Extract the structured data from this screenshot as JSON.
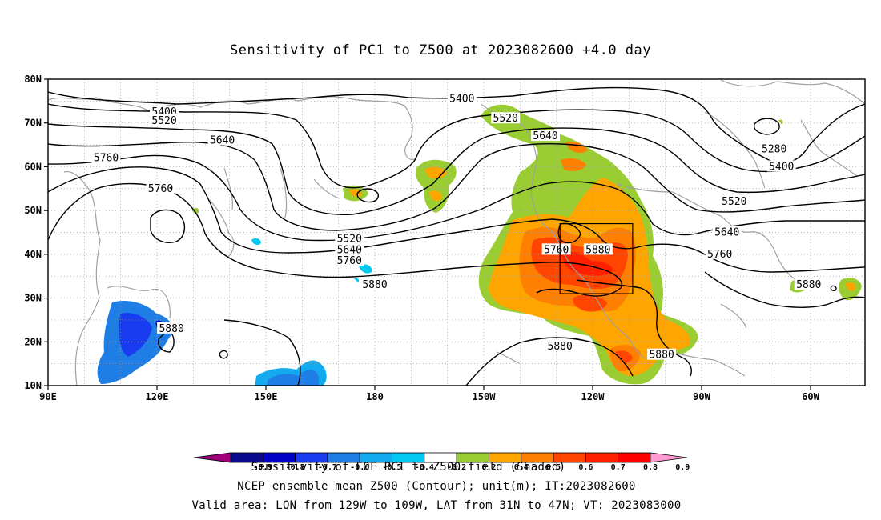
{
  "title": "Sensitivity of PC1 to Z500 at 2023082600 +4.0 day",
  "axes": {
    "lon_ticks": [
      "90E",
      "120E",
      "150E",
      "180",
      "150W",
      "120W",
      "90W",
      "60W"
    ],
    "lat_ticks": [
      "80N",
      "70N",
      "60N",
      "50N",
      "40N",
      "30N",
      "20N",
      "10N"
    ],
    "lon_range_deg": [
      90,
      315
    ],
    "lat_range_deg": [
      10,
      80
    ]
  },
  "contour_labels": [
    {
      "text": "5400",
      "lon": 122,
      "lat": 72.5
    },
    {
      "text": "5520",
      "lon": 122,
      "lat": 70.5
    },
    {
      "text": "5760",
      "lon": 106,
      "lat": 62
    },
    {
      "text": "5640",
      "lon": 138,
      "lat": 66
    },
    {
      "text": "5760",
      "lon": 121,
      "lat": 55
    },
    {
      "text": "5400",
      "lon": 204,
      "lat": 75.5
    },
    {
      "text": "5520",
      "lon": 216,
      "lat": 71
    },
    {
      "text": "5640",
      "lon": 227,
      "lat": 67
    },
    {
      "text": "5520",
      "lon": 173,
      "lat": 43.5
    },
    {
      "text": "5640",
      "lon": 173,
      "lat": 41
    },
    {
      "text": "5760",
      "lon": 173,
      "lat": 38.5
    },
    {
      "text": "5880",
      "lon": 180,
      "lat": 33
    },
    {
      "text": "5880",
      "lon": 124,
      "lat": 23
    },
    {
      "text": "5760",
      "lon": 230,
      "lat": 41
    },
    {
      "text": "5880",
      "lon": 241.5,
      "lat": 41
    },
    {
      "text": "5880",
      "lon": 231,
      "lat": 19
    },
    {
      "text": "5880",
      "lon": 259,
      "lat": 17
    },
    {
      "text": "5280",
      "lon": 290,
      "lat": 64
    },
    {
      "text": "5400",
      "lon": 292,
      "lat": 60
    },
    {
      "text": "5520",
      "lon": 279,
      "lat": 52
    },
    {
      "text": "5640",
      "lon": 277,
      "lat": 45
    },
    {
      "text": "5760",
      "lon": 275,
      "lat": 40
    },
    {
      "text": "5880",
      "lon": 299.5,
      "lat": 33
    }
  ],
  "valid_box": {
    "lon_w": 231,
    "lon_e": 251,
    "lat_s": 31,
    "lat_n": 47
  },
  "colorbar": {
    "labels": [
      "-0.9",
      "-0.8",
      "-0.7",
      "-0.6",
      "-0.5",
      "-0.4",
      "-0.2",
      "0.2",
      "0.4",
      "0.5",
      "0.6",
      "0.7",
      "0.8",
      "0.9"
    ],
    "colors": [
      "#a0007a",
      "#0a0a8c",
      "#0000c8",
      "#1a3cf0",
      "#1e7ee6",
      "#14aaf0",
      "#00c8f0",
      "#ffffff",
      "#9acd32",
      "#ffa500",
      "#ff7f00",
      "#ff4500",
      "#ff2000",
      "#ff0000",
      "#ff9ad2"
    ]
  },
  "footer": {
    "line1": "Sensitivity of EOF PC1 to Z500 field (Shaded)",
    "line2": "NCEP ensemble mean Z500 (Contour); unit(m); IT:2023082600",
    "line3": "Valid area: LON from 129W to 109W, LAT from 31N to 47N; VT: 2023083000"
  }
}
